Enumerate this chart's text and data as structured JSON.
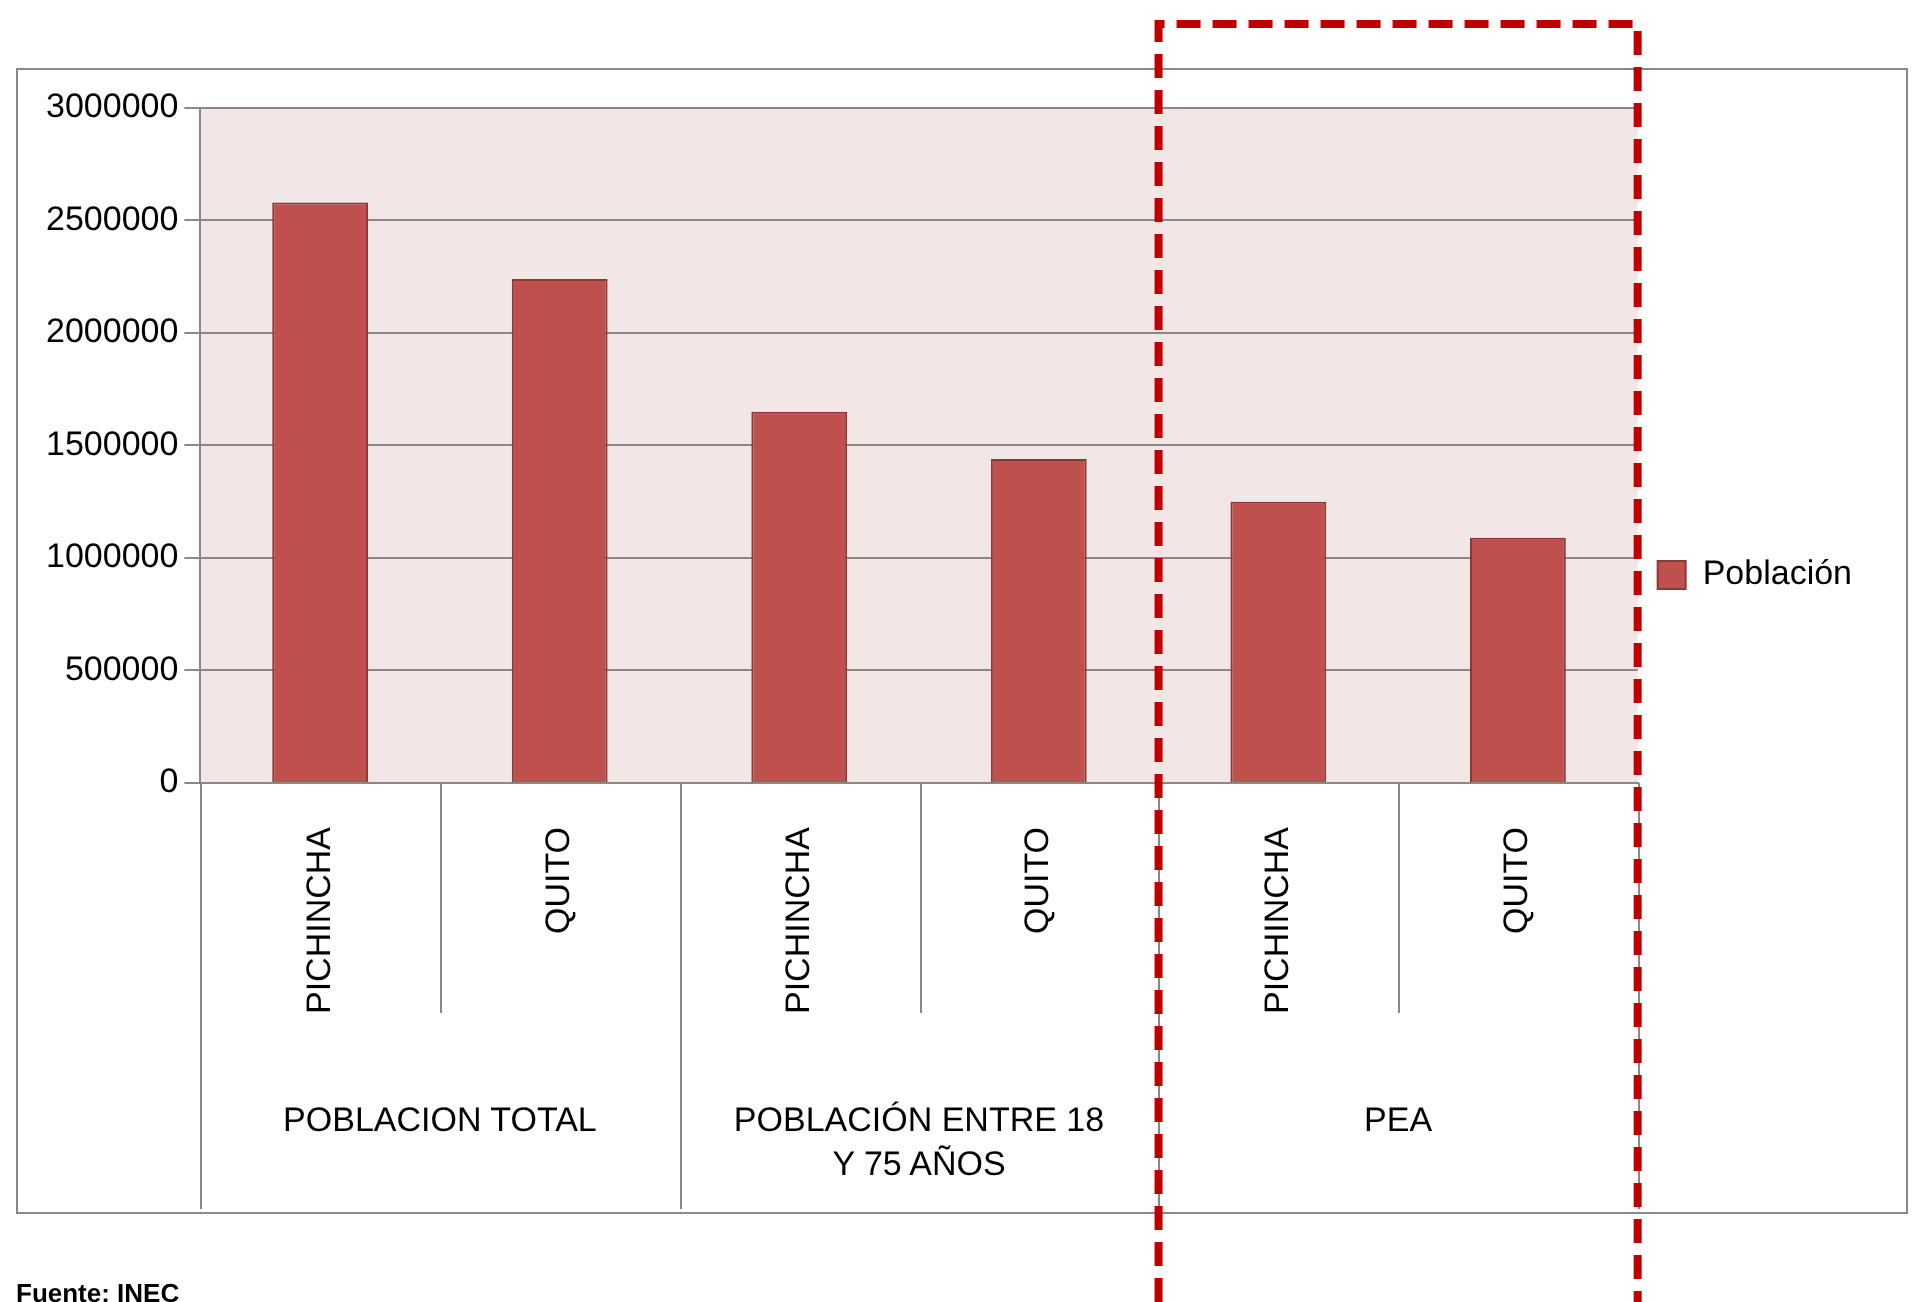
{
  "chart_data": {
    "type": "bar",
    "categories": [
      "PICHINCHA",
      "QUITO",
      "PICHINCHA",
      "QUITO",
      "PICHINCHA",
      "QUITO"
    ],
    "series": [
      {
        "name": "Población",
        "color": "#c0504d",
        "values": [
          2580000,
          2240000,
          1650000,
          1440000,
          1250000,
          1090000
        ]
      }
    ],
    "ylim": [
      0,
      3000000
    ],
    "yticks": [
      0,
      500000,
      1000000,
      1500000,
      2000000,
      2500000,
      3000000
    ],
    "grid": "y",
    "legend": "right",
    "annotations": [
      "POBLACION TOTAL",
      "POBLACIÓN ENTRE 18 Y 75 AÑOS",
      "PEA",
      "Fuente: INEC"
    ]
  }
}
